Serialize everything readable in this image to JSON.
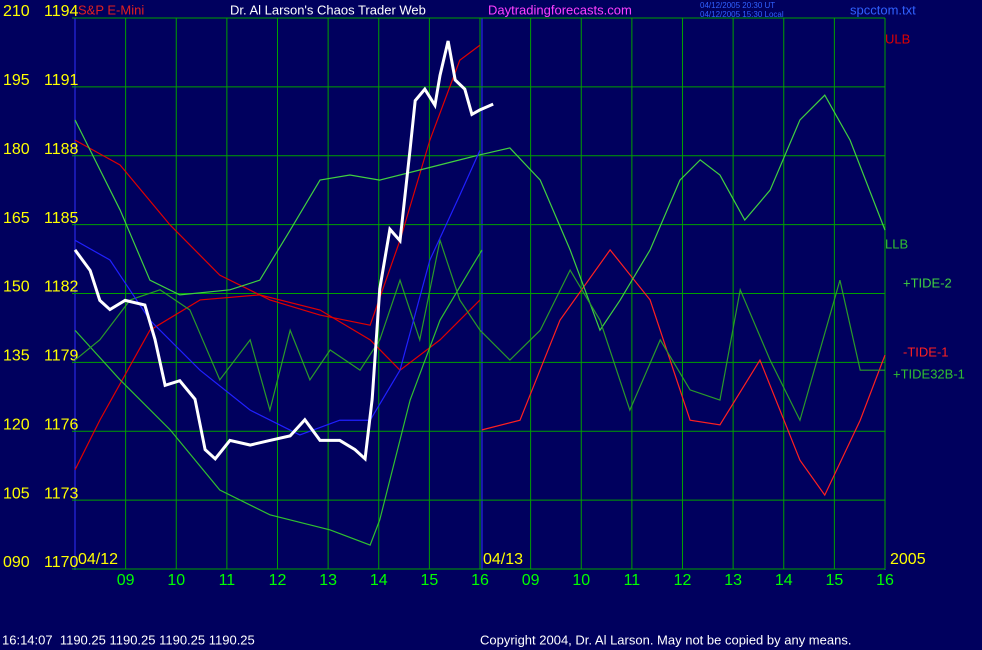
{
  "chart_data": {
    "type": "line",
    "title": "Dr. Al Larson's Chaos Trader Web",
    "subtitle": "Daytradingforecasts.com",
    "instrument": "S&P E-Mini",
    "timestamps": [
      "04/12/2005 20:30 UT",
      "04/12/2005 15:30 Local"
    ],
    "file": "spcctom.txt",
    "dates": [
      "04/12",
      "04/13",
      "2005"
    ],
    "annotations": [
      "ULB",
      "LLB",
      "+TIDE-2",
      "-TIDE-1",
      "+TIDE32B-1"
    ],
    "status": "16:14:07  1190.25 1190.25 1190.25 1190.25",
    "copyright": "Copyright 2004, Dr. Al Larson. May not be copied by any means.",
    "xlim": [
      0,
      16
    ],
    "xticks": [
      {
        "value": 1,
        "label": "09"
      },
      {
        "value": 2,
        "label": "10"
      },
      {
        "value": 3,
        "label": "11"
      },
      {
        "value": 4,
        "label": "12"
      },
      {
        "value": 5,
        "label": "13"
      },
      {
        "value": 6,
        "label": "14"
      },
      {
        "value": 7,
        "label": "15"
      },
      {
        "value": 8,
        "label": "16"
      },
      {
        "value": 9,
        "label": "09"
      },
      {
        "value": 10,
        "label": "10"
      },
      {
        "value": 11,
        "label": "11"
      },
      {
        "value": 12,
        "label": "12"
      },
      {
        "value": 13,
        "label": "13"
      },
      {
        "value": 14,
        "label": "14"
      },
      {
        "value": 15,
        "label": "15"
      },
      {
        "value": 16,
        "label": "16"
      }
    ],
    "ylim": [
      90,
      210
    ],
    "yticks": [
      {
        "value": 90,
        "label": "090"
      },
      105,
      120,
      135,
      150,
      165,
      180,
      195,
      210
    ],
    "y2lim": [
      1170,
      1194
    ],
    "y2ticks": [
      1170,
      1173,
      1176,
      1179,
      1182,
      1185,
      1188,
      1191,
      1194
    ],
    "grid": true,
    "series": [
      {
        "color": "#e00000",
        "x": [
          0,
          0.89,
          1.88,
          2.86,
          3.85,
          4.84,
          5.83,
          6.42,
          7.01,
          7.6,
          8.0
        ],
        "values": [
          183.4,
          178.0,
          164.9,
          154.0,
          148.6,
          145.3,
          143.1,
          161.6,
          183.4,
          200.8,
          204.1
        ]
      },
      {
        "color": "#e00000",
        "x": [
          0,
          0.49,
          1.48,
          2.47,
          3.65,
          4.84,
          5.83,
          6.42,
          7.21,
          7.8,
          8.0
        ],
        "values": [
          111.6,
          122.4,
          142.0,
          148.6,
          149.7,
          146.4,
          139.9,
          133.3,
          139.9,
          146.4,
          148.6
        ]
      },
      {
        "color": "#ff2020",
        "x": [
          8.04,
          8.79,
          9.58,
          10.57,
          11.36,
          12.15,
          12.74,
          13.53,
          14.32,
          14.81,
          15.51,
          16
        ],
        "values": [
          120.3,
          122.4,
          144.2,
          159.5,
          148.6,
          122.4,
          121.4,
          135.5,
          113.7,
          106.1,
          122.4,
          136.6
        ]
      },
      {
        "color": "#40d040",
        "x": [
          0,
          0.3,
          0.89,
          1.48,
          2.07,
          3.06,
          3.65,
          4.25,
          4.84,
          5.43,
          6.02,
          6.81,
          7.6,
          8.0,
          8.59,
          9.19,
          9.78,
          10.37,
          10.77,
          11.36,
          11.95,
          12.35,
          12.74,
          13.23,
          13.73,
          14.32,
          14.81,
          15.31,
          16
        ],
        "values": [
          187.8,
          181.2,
          168.2,
          152.9,
          149.7,
          150.8,
          152.9,
          163.8,
          174.7,
          175.8,
          174.7,
          176.9,
          179.1,
          180.2,
          181.7,
          174.7,
          159.5,
          142.0,
          148.6,
          159.5,
          174.7,
          179.1,
          175.8,
          166.0,
          172.5,
          187.8,
          193.2,
          183.4,
          163.8
        ]
      },
      {
        "color": "#30c030",
        "x": [
          0,
          0.89,
          1.88,
          2.86,
          3.85,
          5.04,
          5.83,
          6.02,
          6.62,
          7.21,
          7.8,
          8.04
        ],
        "values": [
          142.0,
          131.2,
          120.3,
          107.2,
          101.8,
          98.5,
          95.2,
          100.7,
          126.8,
          144.2,
          155.1,
          159.5
        ]
      },
      {
        "color": "#2a9a2a",
        "x": [
          0,
          0.49,
          1.09,
          1.68,
          2.27,
          2.86,
          3.46,
          3.85,
          4.25,
          4.64,
          5.04,
          5.63,
          6.02,
          6.42,
          6.81,
          7.21,
          7.6,
          8.0,
          8.59,
          9.19,
          9.78,
          10.37,
          10.96,
          11.56,
          12.15,
          12.74,
          13.14,
          13.73,
          14.32,
          15.11,
          15.51,
          16
        ],
        "values": [
          135.5,
          139.9,
          148.6,
          150.8,
          146.4,
          131.2,
          139.9,
          124.6,
          142.0,
          131.2,
          137.7,
          133.3,
          139.9,
          152.9,
          139.9,
          161.6,
          148.6,
          142.0,
          135.5,
          142.0,
          155.1,
          144.2,
          124.6,
          139.9,
          129.0,
          126.8,
          150.8,
          135.5,
          122.4,
          152.9,
          133.3,
          133.3
        ]
      },
      {
        "color": "#2020ff",
        "x": [
          0,
          0.69,
          1.48,
          2.47,
          3.46,
          4.44,
          5.23,
          5.83,
          6.42,
          7.01,
          7.6,
          8.0
        ],
        "values": [
          161.6,
          157.3,
          144.2,
          133.3,
          124.6,
          119.2,
          122.4,
          122.4,
          133.3,
          157.3,
          171.4,
          181.2
        ]
      },
      {
        "color": "#ffffff",
        "axis": "y2",
        "x": [
          0,
          0.3,
          0.49,
          0.69,
          0.99,
          1.38,
          1.58,
          1.78,
          2.07,
          2.37,
          2.57,
          2.77,
          3.06,
          3.46,
          3.85,
          4.25,
          4.54,
          4.84,
          5.23,
          5.53,
          5.73,
          5.87,
          6.02,
          6.22,
          6.42,
          6.62,
          6.72,
          6.91,
          7.11,
          7.21,
          7.37,
          7.51,
          7.7,
          7.84,
          8.0,
          8.26
        ],
        "values": [
          1183.9,
          1183.0,
          1181.7,
          1181.3,
          1181.7,
          1181.5,
          1180.0,
          1178.0,
          1178.2,
          1177.4,
          1175.2,
          1174.8,
          1175.6,
          1175.4,
          1175.6,
          1175.8,
          1176.5,
          1175.6,
          1175.6,
          1175.2,
          1174.8,
          1177.4,
          1182.2,
          1184.8,
          1184.3,
          1188.3,
          1190.4,
          1190.9,
          1190.2,
          1191.5,
          1193.0,
          1191.3,
          1190.9,
          1189.8,
          1190.0,
          1190.25
        ]
      }
    ]
  }
}
